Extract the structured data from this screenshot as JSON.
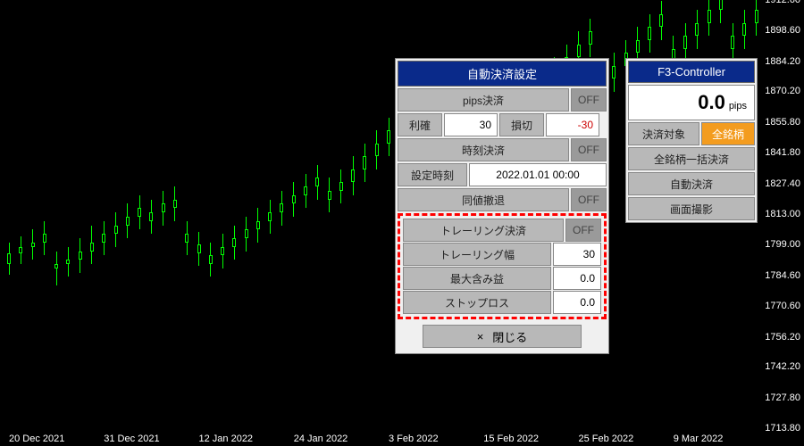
{
  "chart": {
    "bg": "#000000",
    "candle_up_border": "#00ff00",
    "candle_dn_fill": "#00ff00",
    "yticks": [
      1912.6,
      1898.6,
      1884.2,
      1870.2,
      1855.8,
      1841.8,
      1827.4,
      1813.0,
      1799.0,
      1784.6,
      1770.6,
      1756.2,
      1742.2,
      1727.8,
      1713.8
    ],
    "ymin": 1713.8,
    "ymax": 1912.6,
    "xticks": [
      "20 Dec 2021",
      "31 Dec 2021",
      "12 Jan 2022",
      "24 Jan 2022",
      "3 Feb 2022",
      "15 Feb 2022",
      "25 Feb 2022",
      "9 Mar 2022"
    ],
    "candles": [
      [
        1790,
        1800,
        1785,
        1795
      ],
      [
        1795,
        1803,
        1790,
        1798
      ],
      [
        1798,
        1806,
        1792,
        1800
      ],
      [
        1800,
        1810,
        1794,
        1804
      ],
      [
        1788,
        1796,
        1780,
        1790
      ],
      [
        1790,
        1798,
        1784,
        1792
      ],
      [
        1792,
        1802,
        1786,
        1796
      ],
      [
        1796,
        1808,
        1790,
        1800
      ],
      [
        1800,
        1810,
        1794,
        1804
      ],
      [
        1804,
        1814,
        1798,
        1808
      ],
      [
        1808,
        1818,
        1802,
        1812
      ],
      [
        1812,
        1822,
        1806,
        1816
      ],
      [
        1810,
        1820,
        1804,
        1814
      ],
      [
        1814,
        1824,
        1808,
        1818
      ],
      [
        1816,
        1826,
        1810,
        1820
      ],
      [
        1800,
        1810,
        1794,
        1804
      ],
      [
        1795,
        1805,
        1789,
        1799
      ],
      [
        1790,
        1800,
        1784,
        1794
      ],
      [
        1794,
        1804,
        1788,
        1798
      ],
      [
        1798,
        1808,
        1792,
        1802
      ],
      [
        1802,
        1812,
        1796,
        1806
      ],
      [
        1806,
        1816,
        1800,
        1810
      ],
      [
        1810,
        1820,
        1804,
        1814
      ],
      [
        1814,
        1824,
        1808,
        1818
      ],
      [
        1818,
        1828,
        1812,
        1822
      ],
      [
        1822,
        1832,
        1816,
        1826
      ],
      [
        1826,
        1836,
        1820,
        1830
      ],
      [
        1820,
        1830,
        1814,
        1824
      ],
      [
        1824,
        1834,
        1818,
        1828
      ],
      [
        1828,
        1840,
        1822,
        1834
      ],
      [
        1834,
        1846,
        1828,
        1840
      ],
      [
        1840,
        1852,
        1834,
        1846
      ],
      [
        1846,
        1858,
        1840,
        1852
      ],
      [
        1830,
        1842,
        1824,
        1836
      ],
      [
        1836,
        1848,
        1830,
        1842
      ],
      [
        1842,
        1854,
        1836,
        1848
      ],
      [
        1848,
        1860,
        1842,
        1854
      ],
      [
        1854,
        1866,
        1848,
        1860
      ],
      [
        1840,
        1852,
        1834,
        1846
      ],
      [
        1846,
        1858,
        1840,
        1852
      ],
      [
        1852,
        1864,
        1846,
        1858
      ],
      [
        1858,
        1870,
        1852,
        1864
      ],
      [
        1850,
        1862,
        1844,
        1856
      ],
      [
        1856,
        1868,
        1850,
        1862
      ],
      [
        1862,
        1874,
        1856,
        1868
      ],
      [
        1868,
        1880,
        1862,
        1874
      ],
      [
        1874,
        1886,
        1868,
        1880
      ],
      [
        1880,
        1892,
        1874,
        1886
      ],
      [
        1886,
        1898,
        1880,
        1892
      ],
      [
        1892,
        1904,
        1886,
        1898
      ],
      [
        1870,
        1882,
        1864,
        1876
      ],
      [
        1876,
        1888,
        1870,
        1882
      ],
      [
        1882,
        1894,
        1876,
        1888
      ],
      [
        1888,
        1900,
        1882,
        1894
      ],
      [
        1894,
        1906,
        1888,
        1900
      ],
      [
        1900,
        1912,
        1894,
        1906
      ],
      [
        1884,
        1896,
        1878,
        1890
      ],
      [
        1890,
        1902,
        1884,
        1896
      ],
      [
        1896,
        1908,
        1890,
        1902
      ],
      [
        1902,
        1914,
        1896,
        1908
      ],
      [
        1908,
        1920,
        1902,
        1914
      ],
      [
        1890,
        1902,
        1884,
        1896
      ],
      [
        1896,
        1908,
        1890,
        1902
      ],
      [
        1902,
        1914,
        1896,
        1908
      ]
    ]
  },
  "settlement_panel": {
    "title": "自動決済設定",
    "pips_label": "pips決済",
    "pips_state": "OFF",
    "tp_label": "利確",
    "tp_value": "30",
    "sl_label": "損切",
    "sl_value": "-30",
    "time_label": "時刻決済",
    "time_state": "OFF",
    "settime_label": "設定時刻",
    "settime_value": "2022.01.01 00:00",
    "same_label": "同値撤退",
    "same_state": "OFF",
    "trail_label": "トレーリング決済",
    "trail_state": "OFF",
    "trailwidth_label": "トレーリング幅",
    "trailwidth_value": "30",
    "maxprofit_label": "最大含み益",
    "maxprofit_value": "0.0",
    "stoploss_label": "ストップロス",
    "stoploss_value": "0.0",
    "close_icon": "×",
    "close_label": "閉じる"
  },
  "controller_panel": {
    "title": "F3-Controller",
    "pips_value": "0.0",
    "pips_unit": "pips",
    "target_label": "決済対象",
    "target_value": "全銘柄",
    "bulk_label": "全銘柄一括決済",
    "auto_label": "自動決済",
    "shot_label": "画面撮影"
  }
}
